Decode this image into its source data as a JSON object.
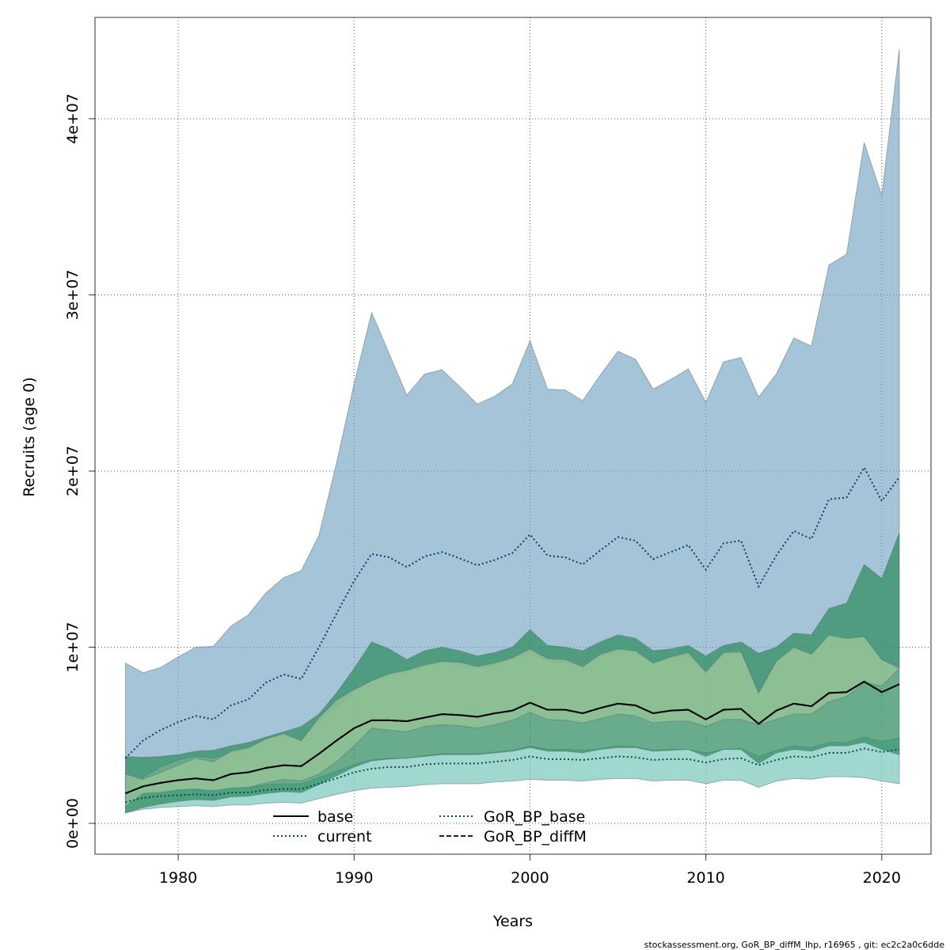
{
  "chart_data": {
    "type": "band-line",
    "xlabel": "Years",
    "ylabel": "Recruits (age 0)",
    "footnote": "stockassessment.org, GoR_BP_diffM_lhp, r16965 , git: ec2c2a0c6dde",
    "x": [
      1977,
      1978,
      1979,
      1980,
      1981,
      1982,
      1983,
      1984,
      1985,
      1986,
      1987,
      1988,
      1989,
      1990,
      1991,
      1992,
      1993,
      1994,
      1995,
      1996,
      1997,
      1998,
      1999,
      2000,
      2001,
      2002,
      2003,
      2004,
      2005,
      2006,
      2007,
      2008,
      2009,
      2010,
      2011,
      2012,
      2013,
      2014,
      2015,
      2016,
      2017,
      2018,
      2019,
      2020,
      2021
    ],
    "xlim": [
      1975.27,
      2022.8
    ],
    "xticks": [
      1980,
      1990,
      2000,
      2010,
      2020
    ],
    "ylim": [
      -1750000,
      45750000
    ],
    "yticks": [
      {
        "value": 0,
        "label": "0e+00"
      },
      {
        "value": 10000000,
        "label": "1e+07"
      },
      {
        "value": 20000000,
        "label": "2e+07"
      },
      {
        "value": 30000000,
        "label": "3e+07"
      },
      {
        "value": 40000000,
        "label": "4e+07"
      }
    ],
    "grid": true,
    "legend": "bottom",
    "series": [
      {
        "name": "current",
        "color": "#0b3d66",
        "linestyle": "dotted",
        "fill": "rgba(112,160,192,0.62)",
        "values": [
          3700000.0,
          4700000.0,
          5300000.0,
          5750000.0,
          6100000.0,
          5900000.0,
          6700000.0,
          7050000.0,
          8000000.0,
          8450000.0,
          8200000.0,
          10000000.0,
          11900000.0,
          13750000.0,
          15300000.0,
          15100000.0,
          14550000.0,
          15150000.0,
          15400000.0,
          15050000.0,
          14650000.0,
          14950000.0,
          15350000.0,
          16400000.0,
          15200000.0,
          15100000.0,
          14700000.0,
          15500000.0,
          16250000.0,
          16050000.0,
          15000000.0,
          15400000.0,
          15800000.0,
          14400000.0,
          15900000.0,
          16050000.0,
          13450000.0,
          15200000.0,
          16600000.0,
          16150000.0,
          18400000.0,
          18500000.0,
          20200000.0,
          18300000.0,
          19650000.0
        ],
        "upper": [
          9100000.0,
          8550000.0,
          8850000.0,
          9450000.0,
          10000000.0,
          10050000.0,
          11200000.0,
          11850000.0,
          13100000.0,
          13950000.0,
          14350000.0,
          16350000.0,
          20450000.0,
          24950000.0,
          29000000.0,
          26650000.0,
          24300000.0,
          25500000.0,
          25750000.0,
          24800000.0,
          23800000.0,
          24250000.0,
          24950000.0,
          27400000.0,
          24650000.0,
          24600000.0,
          24000000.0,
          25450000.0,
          26800000.0,
          26350000.0,
          24650000.0,
          25200000.0,
          25800000.0,
          23900000.0,
          26200000.0,
          26450000.0,
          24200000.0,
          25500000.0,
          27550000.0,
          27100000.0,
          31700000.0,
          32300000.0,
          38650000.0,
          35650000.0,
          43950000.0
        ],
        "lower": [
          1500000.0,
          2600000.0,
          3200000.0,
          3600000.0,
          3800000.0,
          3700000.0,
          4000000.0,
          4200000.0,
          4800000.0,
          5000000.0,
          4700000.0,
          5800000.0,
          6600000.0,
          7500000.0,
          8100000.0,
          8400000.0,
          8600000.0,
          8900000.0,
          9100000.0,
          9000000.0,
          8800000.0,
          9000000.0,
          9300000.0,
          9700000.0,
          9200000.0,
          9100000.0,
          8900000.0,
          9500000.0,
          9800000.0,
          9700000.0,
          9100000.0,
          9400000.0,
          9500000.0,
          8500000.0,
          9600000.0,
          9700000.0,
          7400000.0,
          9200000.0,
          9900000.0,
          9600000.0,
          10600000.0,
          10500000.0,
          10600000.0,
          9300000.0,
          8900000.0
        ]
      },
      {
        "name": "GoR_BP_base",
        "color": "#0b4a4a",
        "linestyle": "dotted",
        "fill": "rgba(120,200,188,0.7)",
        "values": [
          1200000.0,
          1450000.0,
          1550000.0,
          1600000.0,
          1650000.0,
          1600000.0,
          1750000.0,
          1750000.0,
          1900000.0,
          1950000.0,
          1950000.0,
          2250000.0,
          2550000.0,
          2900000.0,
          3100000.0,
          3200000.0,
          3200000.0,
          3350000.0,
          3400000.0,
          3400000.0,
          3400000.0,
          3500000.0,
          3600000.0,
          3800000.0,
          3650000.0,
          3650000.0,
          3600000.0,
          3700000.0,
          3800000.0,
          3750000.0,
          3600000.0,
          3650000.0,
          3650000.0,
          3450000.0,
          3650000.0,
          3700000.0,
          3300000.0,
          3600000.0,
          3800000.0,
          3750000.0,
          4000000.0,
          4000000.0,
          4250000.0,
          4050000.0,
          4200000.0
        ],
        "upper": [
          1600000.0,
          1750000.0,
          1850000.0,
          1900000.0,
          1950000.0,
          1900000.0,
          2050000.0,
          2050000.0,
          2200000.0,
          2250000.0,
          2250000.0,
          2600000.0,
          2950000.0,
          3350000.0,
          3600000.0,
          3700000.0,
          3700000.0,
          3850000.0,
          3950000.0,
          3950000.0,
          3950000.0,
          4050000.0,
          4150000.0,
          4400000.0,
          4200000.0,
          4200000.0,
          4150000.0,
          4250000.0,
          4400000.0,
          4350000.0,
          4150000.0,
          4200000.0,
          4200000.0,
          4000000.0,
          4200000.0,
          4250000.0,
          3800000.0,
          4150000.0,
          4400000.0,
          4300000.0,
          4600000.0,
          4600000.0,
          4900000.0,
          4650000.0,
          4850000.0
        ],
        "lower": [
          600000.0,
          800000.0,
          900000.0,
          950000.0,
          1000000.0,
          950000.0,
          1050000.0,
          1050000.0,
          1150000.0,
          1200000.0,
          1150000.0,
          1400000.0,
          1650000.0,
          1850000.0,
          2000000.0,
          2050000.0,
          2100000.0,
          2200000.0,
          2250000.0,
          2250000.0,
          2250000.0,
          2350000.0,
          2400000.0,
          2500000.0,
          2450000.0,
          2450000.0,
          2400000.0,
          2500000.0,
          2550000.0,
          2550000.0,
          2400000.0,
          2450000.0,
          2450000.0,
          2250000.0,
          2450000.0,
          2450000.0,
          2050000.0,
          2400000.0,
          2550000.0,
          2500000.0,
          2650000.0,
          2650000.0,
          2600000.0,
          2400000.0,
          2250000.0
        ]
      },
      {
        "name": "GoR_BP_diffM",
        "color": "#003a10",
        "linestyle": "dashed",
        "fill": "rgba(46,140,96,0.72)",
        "values": [
          1700000.0,
          2100000.0,
          2300000.0,
          2450000.0,
          2550000.0,
          2450000.0,
          2800000.0,
          2900000.0,
          3150000.0,
          3300000.0,
          3250000.0,
          3950000.0,
          4700000.0,
          5400000.0,
          5850000.0,
          5850000.0,
          5800000.0,
          6000000.0,
          6200000.0,
          6150000.0,
          6050000.0,
          6250000.0,
          6400000.0,
          6850000.0,
          6450000.0,
          6450000.0,
          6250000.0,
          6550000.0,
          6800000.0,
          6700000.0,
          6250000.0,
          6400000.0,
          6450000.0,
          5900000.0,
          6450000.0,
          6500000.0,
          5650000.0,
          6400000.0,
          6800000.0,
          6650000.0,
          7400000.0,
          7450000.0,
          8050000.0,
          7450000.0,
          7900000.0
        ],
        "upper": [
          3800000.0,
          3750000.0,
          3800000.0,
          3900000.0,
          4100000.0,
          4150000.0,
          4400000.0,
          4600000.0,
          4900000.0,
          5200000.0,
          5500000.0,
          6200000.0,
          7400000.0,
          8800000.0,
          10300000.0,
          9900000.0,
          9300000.0,
          9800000.0,
          10000000.0,
          9800000.0,
          9500000.0,
          9700000.0,
          10000000.0,
          11000000.0,
          10100000.0,
          10000000.0,
          9800000.0,
          10300000.0,
          10700000.0,
          10500000.0,
          9800000.0,
          9900000.0,
          10100000.0,
          9500000.0,
          10100000.0,
          10300000.0,
          9650000.0,
          10000000.0,
          10800000.0,
          10700000.0,
          12200000.0,
          12500000.0,
          14700000.0,
          13900000.0,
          16500000.0
        ],
        "lower": [
          600000.0,
          900000.0,
          1100000.0,
          1250000.0,
          1350000.0,
          1300000.0,
          1500000.0,
          1550000.0,
          1700000.0,
          1800000.0,
          1750000.0,
          2200000.0,
          2700000.0,
          3200000.0,
          3550000.0,
          3650000.0,
          3700000.0,
          3800000.0,
          3900000.0,
          3900000.0,
          3900000.0,
          4000000.0,
          4100000.0,
          4300000.0,
          4100000.0,
          4100000.0,
          4000000.0,
          4200000.0,
          4300000.0,
          4300000.0,
          4100000.0,
          4150000.0,
          4200000.0,
          3800000.0,
          4200000.0,
          4200000.0,
          3400000.0,
          4000000.0,
          4200000.0,
          4100000.0,
          4400000.0,
          4400000.0,
          4600000.0,
          4200000.0,
          3900000.0
        ]
      },
      {
        "name": "base",
        "color": "#000000",
        "linestyle": "solid",
        "fill": "rgba(150,196,150,0.78)",
        "values": [
          1700000.0,
          2100000.0,
          2300000.0,
          2450000.0,
          2550000.0,
          2450000.0,
          2800000.0,
          2900000.0,
          3150000.0,
          3300000.0,
          3250000.0,
          3950000.0,
          4700000.0,
          5400000.0,
          5850000.0,
          5850000.0,
          5800000.0,
          6000000.0,
          6200000.0,
          6150000.0,
          6050000.0,
          6250000.0,
          6400000.0,
          6850000.0,
          6450000.0,
          6450000.0,
          6250000.0,
          6550000.0,
          6800000.0,
          6700000.0,
          6250000.0,
          6400000.0,
          6450000.0,
          5900000.0,
          6450000.0,
          6500000.0,
          5650000.0,
          6400000.0,
          6800000.0,
          6650000.0,
          7400000.0,
          7450000.0,
          8050000.0,
          7450000.0,
          7900000.0
        ],
        "upper": [
          2800000.0,
          2500000.0,
          2900000.0,
          3300000.0,
          3700000.0,
          3500000.0,
          4100000.0,
          4300000.0,
          4800000.0,
          5100000.0,
          4700000.0,
          6000000.0,
          7000000.0,
          7600000.0,
          8100000.0,
          8500000.0,
          8700000.0,
          9000000.0,
          9200000.0,
          9150000.0,
          8900000.0,
          9100000.0,
          9400000.0,
          9900000.0,
          9350000.0,
          9300000.0,
          8900000.0,
          9600000.0,
          9900000.0,
          9800000.0,
          9100000.0,
          9450000.0,
          9700000.0,
          8600000.0,
          9700000.0,
          9750000.0,
          7400000.0,
          9200000.0,
          10000000.0,
          9600000.0,
          10700000.0,
          10500000.0,
          10600000.0,
          9300000.0,
          8800000.0
        ],
        "lower": [
          950000.0,
          1700000.0,
          1750000.0,
          1900000.0,
          1950000.0,
          1850000.0,
          2000000.0,
          2050000.0,
          2300000.0,
          2500000.0,
          2400000.0,
          2800000.0,
          3500000.0,
          4400000.0,
          5400000.0,
          5300000.0,
          5200000.0,
          5500000.0,
          5600000.0,
          5550000.0,
          5400000.0,
          5600000.0,
          5850000.0,
          6300000.0,
          5900000.0,
          5850000.0,
          5700000.0,
          5950000.0,
          6200000.0,
          6100000.0,
          5700000.0,
          5800000.0,
          5800000.0,
          5500000.0,
          5900000.0,
          5900000.0,
          5600000.0,
          5900000.0,
          6200000.0,
          6200000.0,
          6900000.0,
          7200000.0,
          8000000.0,
          7800000.0,
          8800000.0
        ]
      }
    ]
  }
}
